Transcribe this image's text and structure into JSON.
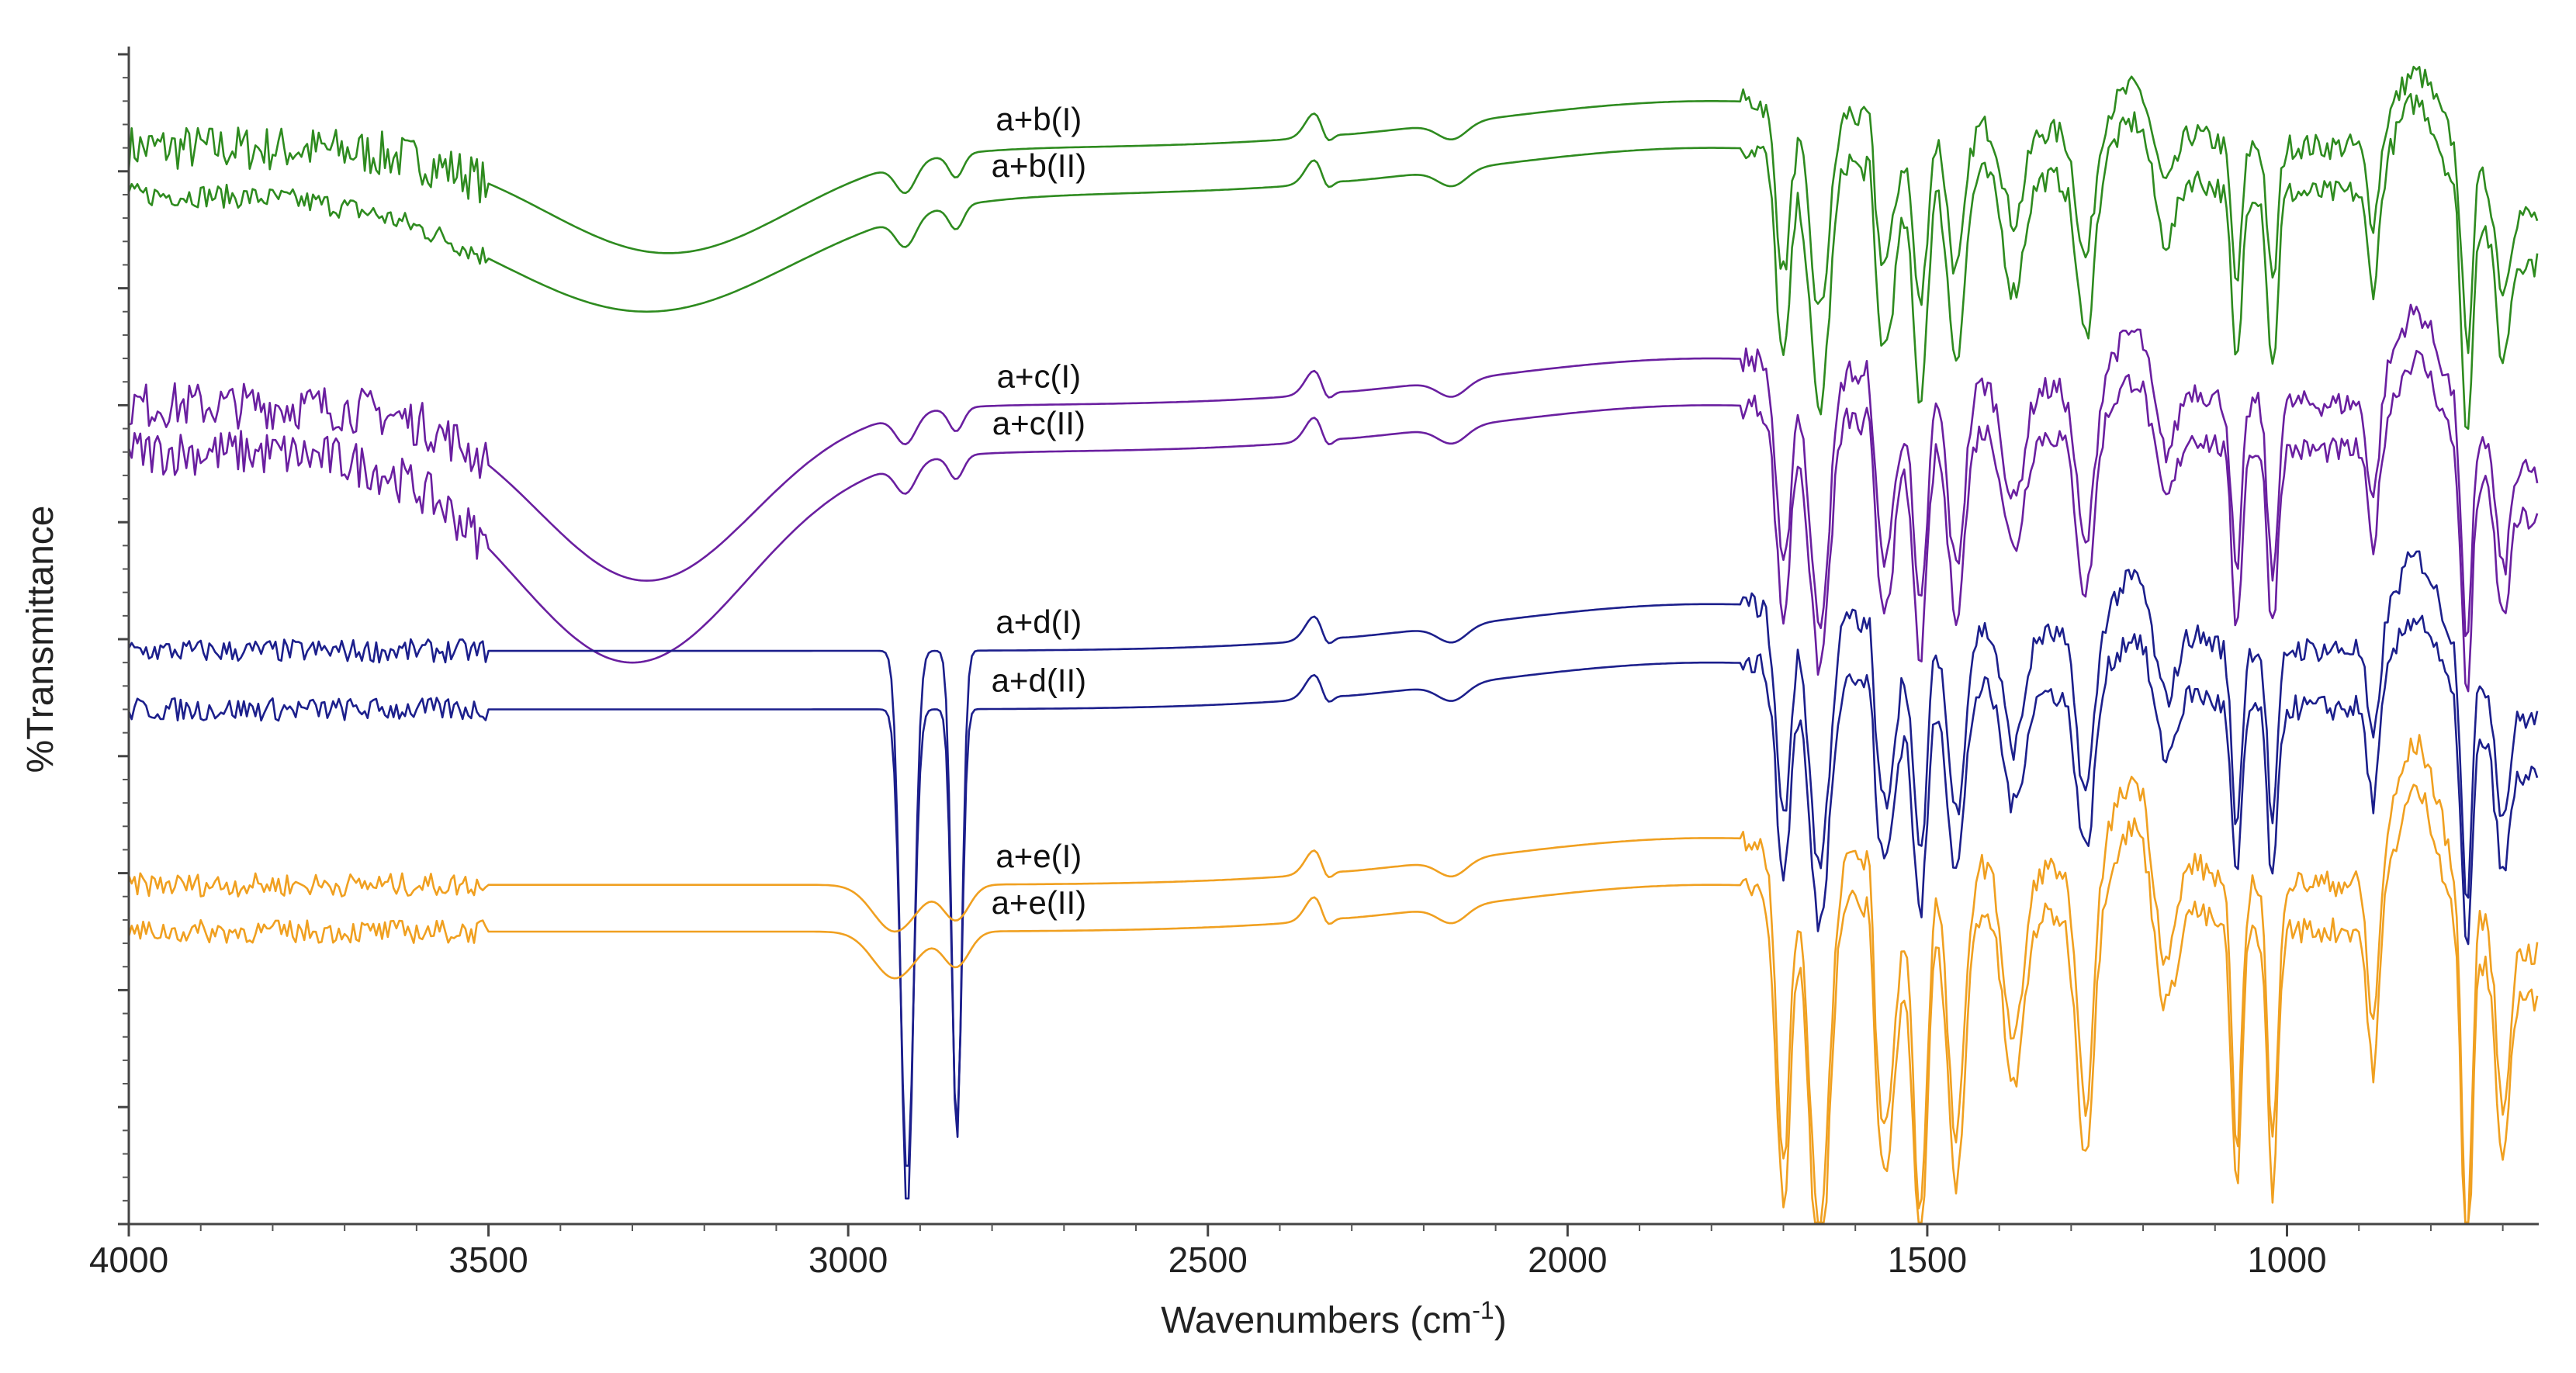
{
  "chart_data": {
    "type": "line",
    "title": "",
    "xlabel": "Wavenumbers (cm",
    "xlabel_sup": "-1",
    "xlabel_close": ")",
    "ylabel": "%Transmittance",
    "xlim": [
      4000,
      650
    ],
    "x_reversed": true,
    "x_ticks": [
      4000,
      3500,
      3000,
      2500,
      2000,
      1500,
      1000
    ],
    "x_tick_labels": [
      "4000",
      "3500",
      "3000",
      "2500",
      "2000",
      "1500",
      "1000"
    ],
    "y_ticks_labeled": false,
    "ylim": [
      0,
      100
    ],
    "grid": false,
    "legend": "inline labels",
    "peaks": {
      "sym_CH2": 2918,
      "asym_CH2": 2849,
      "OH_broad": 3280,
      "NH_broad": 3300,
      "CO2": 2350,
      "carbonyl": 1720,
      "amide_I": 1650,
      "ring": 1510
    },
    "series": [
      {
        "name": "a+b(I)",
        "color": "#2e8b1f",
        "baseline": 92,
        "features": "oh_broad_shallow,fingerprint_high"
      },
      {
        "name": "a+b(II)",
        "color": "#2e8b1f",
        "baseline": 88,
        "features": "oh_broad,fingerprint"
      },
      {
        "name": "a+c(I)",
        "color": "#6a1fa0",
        "baseline": 70,
        "features": "oh_broad_deep,fingerprint"
      },
      {
        "name": "a+c(II)",
        "color": "#6a1fa0",
        "baseline": 66,
        "features": "oh_broad_deeper,fingerprint"
      },
      {
        "name": "a+d(I)",
        "color": "#1c1f8c",
        "baseline": 49,
        "features": "ch2_strong,fingerprint"
      },
      {
        "name": "a+d(II)",
        "color": "#1c1f8c",
        "baseline": 44,
        "features": "ch2_strong,fingerprint"
      },
      {
        "name": "a+e(I)",
        "color": "#f0a020",
        "baseline": 29,
        "features": "ch2_weak,fingerprint_deep"
      },
      {
        "name": "a+e(II)",
        "color": "#f0a020",
        "baseline": 25,
        "features": "ch2_weak,fingerprint_deep"
      }
    ],
    "series_labels": [
      {
        "text": "a+b(I)",
        "at_wavenumber": 2735
      },
      {
        "text": "a+b(II)",
        "at_wavenumber": 2735
      },
      {
        "text": "a+c(I)",
        "at_wavenumber": 2735
      },
      {
        "text": "a+c(II)",
        "at_wavenumber": 2735
      },
      {
        "text": "a+d(I)",
        "at_wavenumber": 2735
      },
      {
        "text": "a+d(II)",
        "at_wavenumber": 2735
      },
      {
        "text": "a+e(I)",
        "at_wavenumber": 2735
      },
      {
        "text": "a+e(II)",
        "at_wavenumber": 2735
      }
    ]
  }
}
